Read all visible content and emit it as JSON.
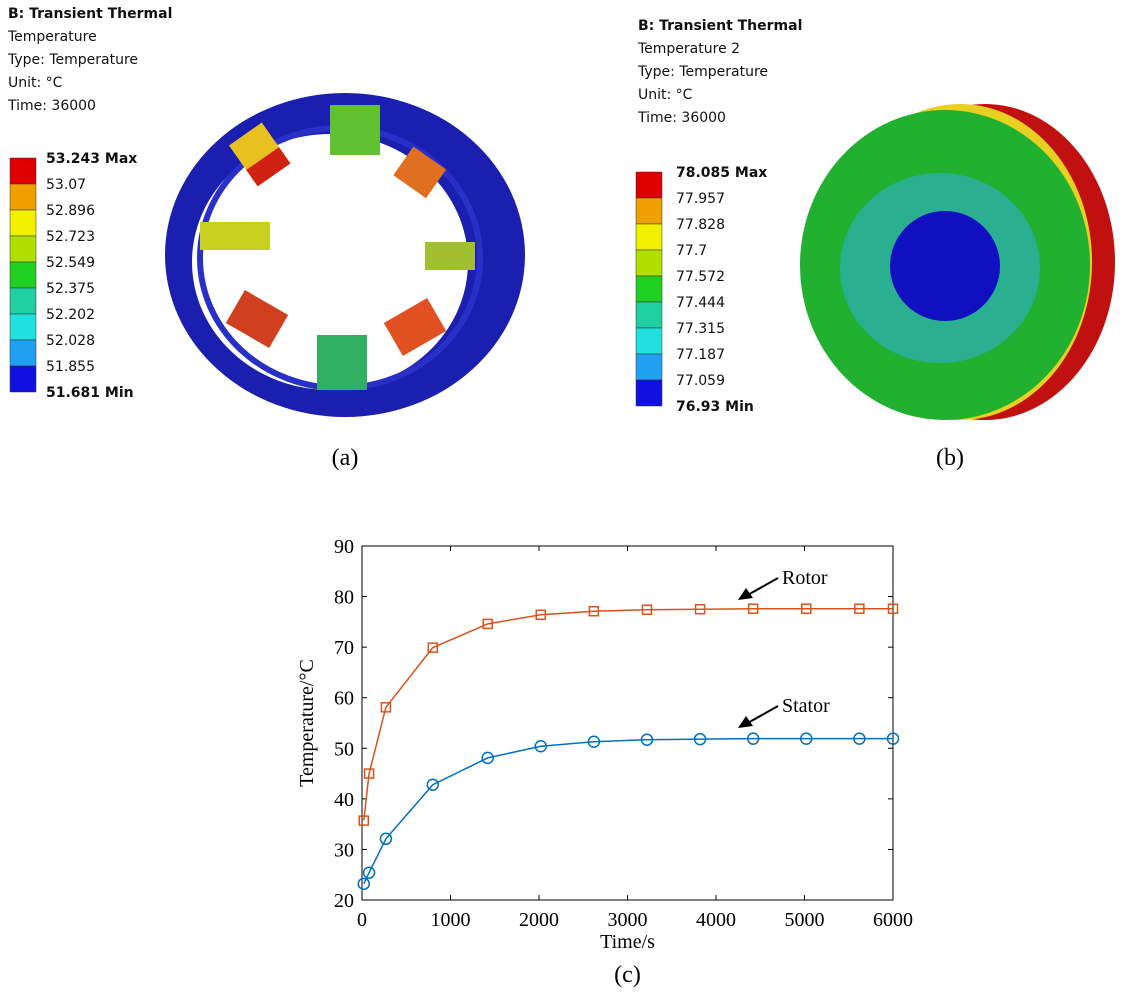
{
  "panels": [
    {
      "title": "B: Transient Thermal",
      "lines": [
        "Temperature",
        "Type: Temperature",
        "Unit: °C",
        "Time: 36000"
      ],
      "legend": [
        "53.243 Max",
        "53.07",
        "52.896",
        "52.723",
        "52.549",
        "52.375",
        "52.202",
        "52.028",
        "51.855",
        "51.681 Min"
      ],
      "caption": "(a)"
    },
    {
      "title": "B: Transient Thermal",
      "lines": [
        "Temperature 2",
        "Type: Temperature",
        "Unit: °C",
        "Time: 36000"
      ],
      "legend": [
        "78.085 Max",
        "77.957",
        "77.828",
        "77.7",
        "77.572",
        "77.444",
        "77.315",
        "77.187",
        "77.059",
        "76.93 Min"
      ],
      "caption": "(b)"
    }
  ],
  "chart_data": {
    "type": "line",
    "caption": "(c)",
    "x_label": "Time/s",
    "y_label": "Temperature/°C",
    "x": [
      20,
      80,
      270,
      800,
      1420,
      2020,
      2620,
      3220,
      3820,
      4420,
      5020,
      5620,
      6000
    ],
    "series": [
      {
        "name": "Rotor",
        "color": "#d95319",
        "marker": "square",
        "values": [
          35.7,
          45,
          58.1,
          69.9,
          74.6,
          76.4,
          77.1,
          77.4,
          77.5,
          77.6,
          77.6,
          77.6,
          77.6
        ]
      },
      {
        "name": "Stator",
        "color": "#0072bd",
        "marker": "circle",
        "values": [
          23.2,
          25.4,
          32.1,
          42.8,
          48.1,
          50.4,
          51.3,
          51.7,
          51.8,
          51.9,
          51.9,
          51.9,
          51.9
        ]
      }
    ],
    "xlim": [
      0,
      6000
    ],
    "xticks": [
      0,
      1000,
      2000,
      3000,
      4000,
      5000,
      6000
    ],
    "ylim": [
      20,
      90
    ],
    "yticks": [
      20,
      30,
      40,
      50,
      60,
      70,
      80,
      90
    ]
  }
}
